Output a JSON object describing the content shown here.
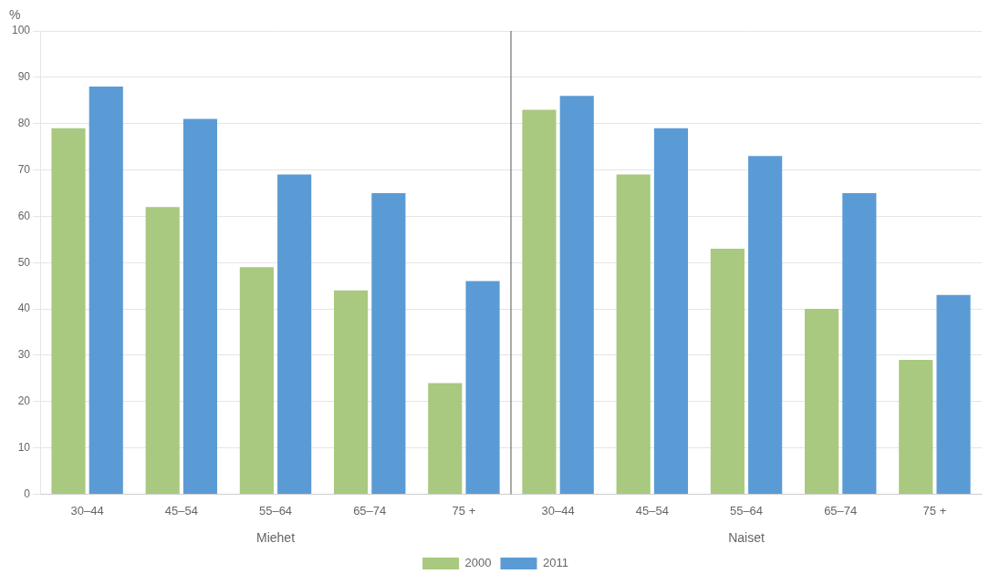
{
  "chart_data": {
    "type": "bar",
    "ylabel": "%",
    "categories": [
      "30–44",
      "45–54",
      "55–64",
      "65–74",
      "75 +",
      "30–44",
      "45–54",
      "55–64",
      "65–74",
      "75 +"
    ],
    "x_groups": [
      "Miehet",
      "Naiset"
    ],
    "series": [
      {
        "name": "2000",
        "color": "#a8c97f",
        "values": [
          79,
          62,
          49,
          44,
          24,
          83,
          69,
          53,
          40,
          29
        ]
      },
      {
        "name": "2011",
        "color": "#5b9bd5",
        "values": [
          88,
          81,
          69,
          65,
          46,
          86,
          79,
          73,
          65,
          43
        ]
      }
    ],
    "ylim": [
      0,
      100
    ],
    "yticks": [
      0,
      10,
      20,
      30,
      40,
      50,
      60,
      70,
      80,
      90,
      100
    ],
    "grid": true,
    "legend": "bottom"
  }
}
